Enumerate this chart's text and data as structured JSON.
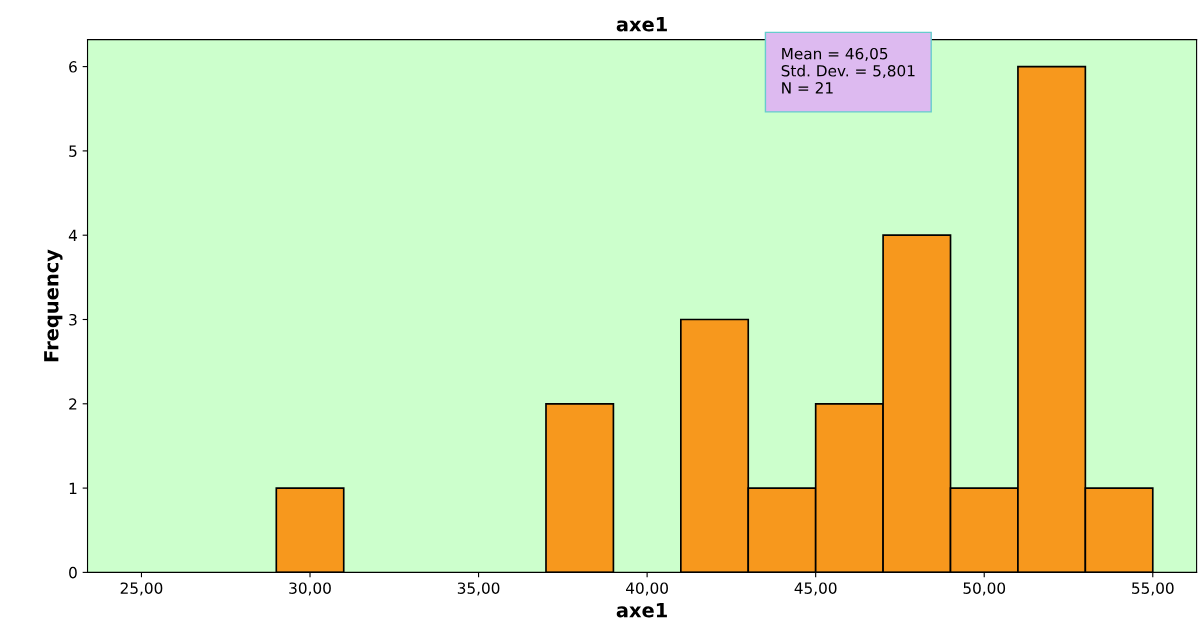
{
  "chart_data": {
    "type": "histogram",
    "title": "axe1",
    "xlabel": "axe1",
    "ylabel": "Frequency",
    "bins": [
      29,
      31,
      33,
      35,
      37,
      39,
      41,
      43,
      45,
      47,
      49,
      51,
      53,
      55
    ],
    "values": [
      1,
      0,
      0,
      0,
      2,
      0,
      3,
      1,
      2,
      4,
      1,
      6,
      1
    ],
    "color": "#f7981d",
    "xlim": [
      23.4,
      56.3
    ],
    "ylim": [
      0,
      6.32
    ],
    "xticks": [
      {
        "value": 25,
        "label": "25,00"
      },
      {
        "value": 30,
        "label": "30,00"
      },
      {
        "value": 35,
        "label": "35,00"
      },
      {
        "value": 40,
        "label": "40,00"
      },
      {
        "value": 45,
        "label": "45,00"
      },
      {
        "value": 50,
        "label": "50,00"
      },
      {
        "value": 55,
        "label": "55,00"
      }
    ],
    "yticks": [
      0,
      1,
      2,
      3,
      4,
      5,
      6
    ],
    "annotations": [
      "Mean = 46,05\nStd. Dev. = 5,801\nN = 21"
    ],
    "grid": false,
    "legend": false
  }
}
